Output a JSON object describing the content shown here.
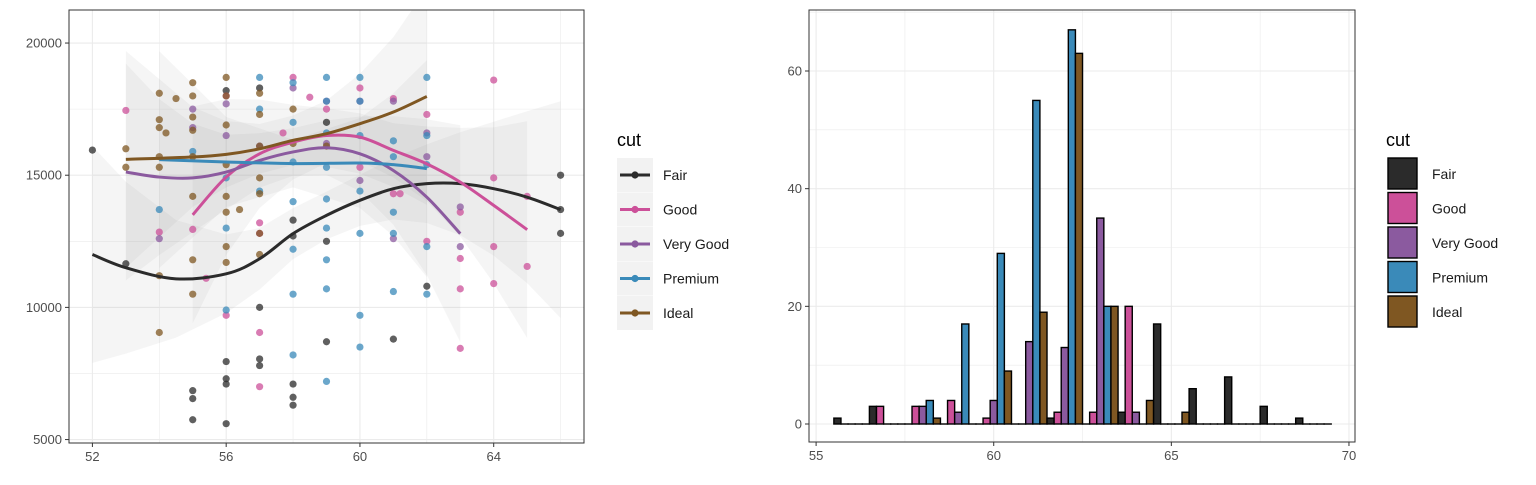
{
  "colors": {
    "Fair": "#2b2b2b",
    "Good": "#cc5099",
    "Very Good": "#8b5a9f",
    "Premium": "#3a8ab9",
    "Ideal": "#7f5722"
  },
  "chart_data": [
    {
      "type": "scatter",
      "title": "",
      "xlabel": "",
      "ylabel": "",
      "xlim": [
        51.3,
        66.7
      ],
      "ylim": [
        4870,
        21250
      ],
      "xticks": [
        52,
        56,
        60,
        64
      ],
      "yticks": [
        5000,
        10000,
        15000,
        20000
      ],
      "grid": true,
      "legend": {
        "title": "cut",
        "placement": "right",
        "entries": [
          "Fair",
          "Good",
          "Very Good",
          "Premium",
          "Ideal"
        ]
      },
      "series": [
        {
          "name": "Fair",
          "points": [
            [
              52,
              15950
            ],
            [
              53,
              11650
            ],
            [
              55,
              6850
            ],
            [
              55,
              6550
            ],
            [
              55,
              5750
            ],
            [
              56,
              7950
            ],
            [
              56,
              7300
            ],
            [
              56,
              7100
            ],
            [
              56,
              5600
            ],
            [
              56,
              18200
            ],
            [
              57,
              10000
            ],
            [
              57,
              8050
            ],
            [
              57,
              7800
            ],
            [
              57,
              18300
            ],
            [
              58,
              13300
            ],
            [
              58,
              7100
            ],
            [
              58,
              6600
            ],
            [
              58,
              6300
            ],
            [
              58,
              12700
            ],
            [
              59,
              8700
            ],
            [
              59,
              12500
            ],
            [
              59,
              17000
            ],
            [
              61,
              8800
            ],
            [
              62,
              10800
            ],
            [
              66,
              15000
            ],
            [
              66,
              13700
            ],
            [
              66,
              12800
            ]
          ],
          "smooth": [
            [
              52,
              12000
            ],
            [
              53,
              11500
            ],
            [
              54.5,
              11080
            ],
            [
              56,
              11270
            ],
            [
              57,
              11840
            ],
            [
              58,
              12790
            ],
            [
              59,
              13480
            ],
            [
              60,
              14050
            ],
            [
              61,
              14490
            ],
            [
              62,
              14680
            ],
            [
              63,
              14680
            ],
            [
              64,
              14490
            ],
            [
              65,
              14170
            ],
            [
              66,
              13700
            ]
          ]
        },
        {
          "name": "Good",
          "points": [
            [
              53,
              17450
            ],
            [
              54,
              12850
            ],
            [
              55,
              12950
            ],
            [
              55.4,
              11100
            ],
            [
              56,
              9700
            ],
            [
              56,
              18000
            ],
            [
              57,
              9050
            ],
            [
              57,
              7000
            ],
            [
              57,
              12800
            ],
            [
              57,
              13200
            ],
            [
              58,
              18700
            ],
            [
              58.5,
              17950
            ],
            [
              57.7,
              16600
            ],
            [
              59,
              17500
            ],
            [
              60,
              18300
            ],
            [
              60,
              15300
            ],
            [
              61,
              17900
            ],
            [
              61,
              14300
            ],
            [
              61.2,
              14300
            ],
            [
              62,
              17300
            ],
            [
              62,
              12500
            ],
            [
              63,
              13600
            ],
            [
              63,
              11850
            ],
            [
              63,
              10700
            ],
            [
              63,
              8450
            ],
            [
              64,
              18600
            ],
            [
              64,
              14900
            ],
            [
              64,
              12300
            ],
            [
              64,
              10900
            ],
            [
              65,
              14200
            ],
            [
              65,
              11550
            ]
          ],
          "smooth": [
            [
              55,
              13500
            ],
            [
              56,
              14930
            ],
            [
              57,
              15810
            ],
            [
              58,
              16250
            ],
            [
              59,
              16500
            ],
            [
              60,
              16440
            ],
            [
              61,
              15940
            ],
            [
              62,
              15430
            ],
            [
              63,
              14740
            ],
            [
              64,
              13860
            ],
            [
              65,
              12940
            ]
          ]
        },
        {
          "name": "Very Good",
          "points": [
            [
              54,
              12600
            ],
            [
              55,
              17500
            ],
            [
              55,
              16800
            ],
            [
              56,
              16500
            ],
            [
              56,
              17700
            ],
            [
              57,
              16100
            ],
            [
              58,
              18300
            ],
            [
              59,
              17800
            ],
            [
              59,
              16200
            ],
            [
              60,
              17800
            ],
            [
              60,
              14800
            ],
            [
              61,
              17800
            ],
            [
              61,
              12600
            ],
            [
              62,
              16600
            ],
            [
              62,
              15700
            ],
            [
              63,
              13800
            ],
            [
              63,
              12300
            ]
          ],
          "smooth": [
            [
              53,
              15120
            ],
            [
              54,
              14930
            ],
            [
              55,
              14900
            ],
            [
              56,
              15120
            ],
            [
              57,
              15560
            ],
            [
              58,
              15880
            ],
            [
              59,
              16040
            ],
            [
              60,
              15810
            ],
            [
              61,
              15180
            ],
            [
              62,
              14170
            ],
            [
              63,
              12790
            ]
          ]
        },
        {
          "name": "Premium",
          "points": [
            [
              54,
              13700
            ],
            [
              55,
              15900
            ],
            [
              56,
              14900
            ],
            [
              56,
              13000
            ],
            [
              56,
              9900
            ],
            [
              57,
              18700
            ],
            [
              57,
              17500
            ],
            [
              57,
              14400
            ],
            [
              58,
              18500
            ],
            [
              58,
              17000
            ],
            [
              58,
              15500
            ],
            [
              58,
              14000
            ],
            [
              58,
              12200
            ],
            [
              58,
              10500
            ],
            [
              58,
              8200
            ],
            [
              59,
              18700
            ],
            [
              59,
              17800
            ],
            [
              59,
              16600
            ],
            [
              59,
              15300
            ],
            [
              59,
              14100
            ],
            [
              59,
              13000
            ],
            [
              59,
              11800
            ],
            [
              59,
              10700
            ],
            [
              59,
              7200
            ],
            [
              60,
              18700
            ],
            [
              60,
              17800
            ],
            [
              60,
              16500
            ],
            [
              60,
              14400
            ],
            [
              60,
              12800
            ],
            [
              60,
              9700
            ],
            [
              60,
              8500
            ],
            [
              61,
              16300
            ],
            [
              61,
              15700
            ],
            [
              61,
              13600
            ],
            [
              61,
              12800
            ],
            [
              61,
              10600
            ],
            [
              62,
              18700
            ],
            [
              62,
              16500
            ],
            [
              62,
              15400
            ],
            [
              62,
              12300
            ],
            [
              62,
              10500
            ]
          ],
          "smooth": [
            [
              54,
              15590
            ],
            [
              56,
              15500
            ],
            [
              58,
              15440
            ],
            [
              60,
              15460
            ],
            [
              61,
              15400
            ],
            [
              62,
              15250
            ]
          ]
        },
        {
          "name": "Ideal",
          "points": [
            [
              53,
              16000
            ],
            [
              53,
              15300
            ],
            [
              54,
              18100
            ],
            [
              54,
              17100
            ],
            [
              54,
              16800
            ],
            [
              54,
              15700
            ],
            [
              54,
              15300
            ],
            [
              54,
              11200
            ],
            [
              54,
              9050
            ],
            [
              54.5,
              17900
            ],
            [
              54.2,
              16600
            ],
            [
              55,
              18500
            ],
            [
              55,
              18000
            ],
            [
              55,
              17200
            ],
            [
              55,
              16700
            ],
            [
              55,
              15700
            ],
            [
              55,
              14200
            ],
            [
              55,
              11800
            ],
            [
              55,
              10500
            ],
            [
              56,
              18700
            ],
            [
              56,
              18000
            ],
            [
              56,
              16900
            ],
            [
              56,
              15400
            ],
            [
              56,
              14200
            ],
            [
              56,
              13600
            ],
            [
              56,
              12300
            ],
            [
              56,
              11700
            ],
            [
              56.4,
              13700
            ],
            [
              57,
              18100
            ],
            [
              57,
              17300
            ],
            [
              57,
              16100
            ],
            [
              57,
              14900
            ],
            [
              57,
              14300
            ],
            [
              57,
              12800
            ],
            [
              57,
              12000
            ],
            [
              58,
              17500
            ],
            [
              58,
              16200
            ],
            [
              59,
              16100
            ]
          ],
          "smooth": [
            [
              53,
              15600
            ],
            [
              55,
              15690
            ],
            [
              56,
              15790
            ],
            [
              57,
              16000
            ],
            [
              58,
              16320
            ],
            [
              59,
              16570
            ],
            [
              60,
              16950
            ],
            [
              61,
              17390
            ],
            [
              62,
              17980
            ]
          ]
        }
      ]
    },
    {
      "type": "bar",
      "title": "",
      "xlabel": "",
      "ylabel": "",
      "position": "dodge",
      "binwidth": 1,
      "xlim": [
        54.8,
        70.17
      ],
      "ylim": [
        -3.06,
        70.37
      ],
      "xticks": [
        55,
        60,
        65,
        70
      ],
      "yticks": [
        0,
        20,
        40,
        60
      ],
      "grid": true,
      "legend": {
        "title": "cut",
        "placement": "right",
        "entries": [
          "Fair",
          "Good",
          "Very Good",
          "Premium",
          "Ideal"
        ]
      },
      "categories": [
        56,
        57,
        58,
        59,
        60,
        61,
        62,
        63,
        64,
        65,
        66,
        67,
        68,
        69
      ],
      "series": [
        {
          "name": "Fair",
          "values": [
            1,
            3,
            0,
            0,
            0,
            0,
            1,
            0,
            2,
            17,
            6,
            8,
            3,
            1
          ]
        },
        {
          "name": "Good",
          "values": [
            0,
            3,
            3,
            4,
            1,
            0,
            2,
            2,
            20,
            0,
            0,
            0,
            0,
            0
          ]
        },
        {
          "name": "Very Good",
          "values": [
            0,
            0,
            3,
            2,
            4,
            14,
            13,
            35,
            2,
            0,
            0,
            0,
            0,
            0
          ]
        },
        {
          "name": "Premium",
          "values": [
            0,
            0,
            4,
            17,
            29,
            55,
            67,
            20,
            0,
            0,
            0,
            0,
            0,
            0
          ]
        },
        {
          "name": "Ideal",
          "values": [
            0,
            0,
            1,
            0,
            9,
            19,
            63,
            20,
            4,
            2,
            0,
            0,
            0,
            0
          ]
        }
      ]
    }
  ]
}
